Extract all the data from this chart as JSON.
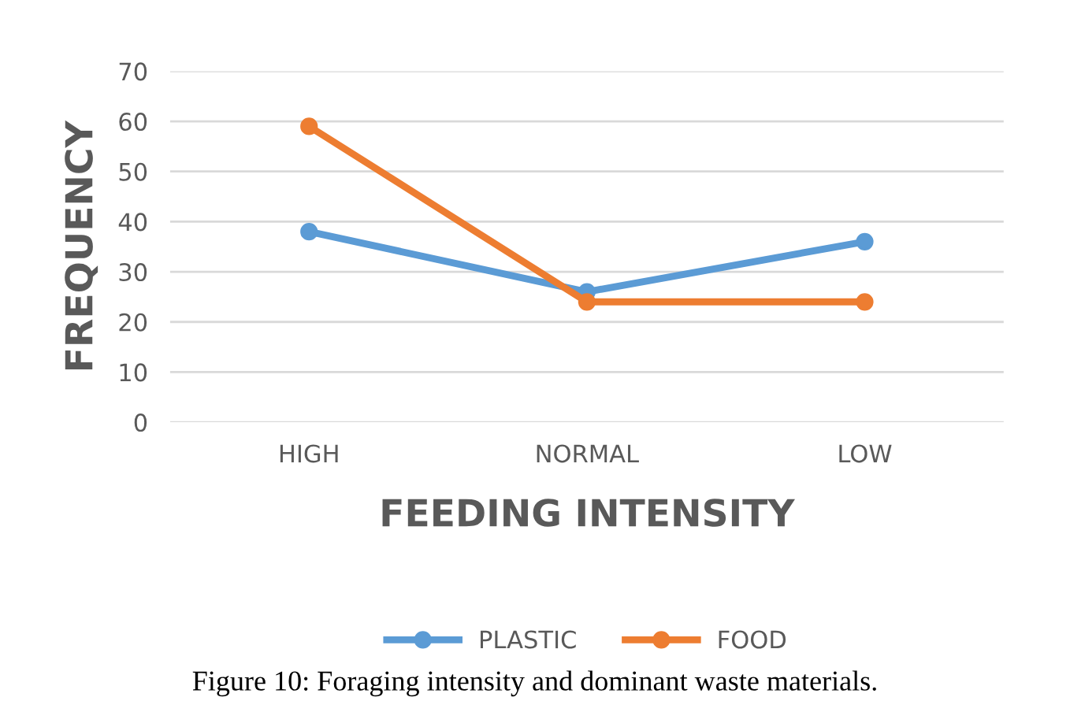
{
  "chart_data": {
    "type": "line",
    "categories": [
      "HIGH",
      "NORMAL",
      "LOW"
    ],
    "series": [
      {
        "name": "PLASTIC",
        "color": "#5b9bd5",
        "values": [
          38,
          26,
          36
        ]
      },
      {
        "name": "FOOD",
        "color": "#ed7d31",
        "values": [
          59,
          24,
          24
        ]
      }
    ],
    "xlabel": "FEEDING INTENSITY",
    "ylabel": "FREQUENCY",
    "ylim": [
      0,
      70
    ],
    "yticks": [
      0,
      10,
      20,
      30,
      40,
      50,
      60,
      70
    ],
    "grid": "y",
    "legend": "bottom",
    "marker": "circle",
    "line_style": "solid",
    "annotations": [
      "Figure 10: Foraging intensity and dominant waste materials."
    ]
  }
}
